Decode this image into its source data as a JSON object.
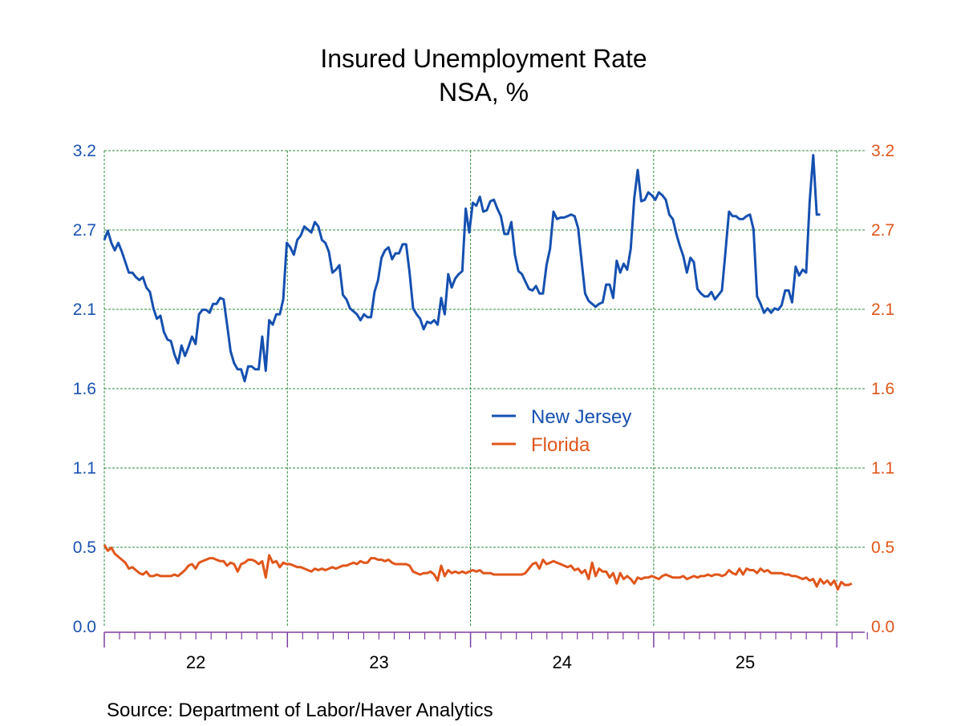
{
  "chart_data": {
    "type": "line",
    "title": "Insured Unemployment Rate",
    "subtitle": "NSA, %",
    "source": "Source:  Department of Labor/Haver Analytics",
    "xlabel": "",
    "ylabel": "",
    "frequency": "weekly",
    "x_tick_labels": [
      "22",
      "23",
      "24",
      "25"
    ],
    "x_range": [
      "2022-01",
      "2026-02"
    ],
    "y_left": {
      "range": [
        0.0,
        3.2
      ],
      "tick_values": [
        0.0,
        0.533,
        1.067,
        1.6,
        2.133,
        2.667,
        3.2
      ],
      "tick_labels": [
        "0.0",
        "0.5",
        "1.1",
        "1.6",
        "2.1",
        "2.7",
        "3.2"
      ],
      "color": "#1a52b0"
    },
    "y_right": {
      "range": [
        0.0,
        3.2
      ],
      "tick_values": [
        0.0,
        0.533,
        1.067,
        1.6,
        2.133,
        2.667,
        3.2
      ],
      "tick_labels": [
        "0.0",
        "0.5",
        "1.1",
        "1.6",
        "2.1",
        "2.7",
        "3.2"
      ],
      "color": "#e0561b"
    },
    "grid": true,
    "legend_position": "center",
    "series": [
      {
        "name": "New Jersey",
        "color": "#1550b0",
        "start_week": 0,
        "values": [
          2.6,
          2.66,
          2.58,
          2.53,
          2.58,
          2.52,
          2.45,
          2.38,
          2.38,
          2.35,
          2.33,
          2.35,
          2.28,
          2.25,
          2.14,
          2.07,
          2.09,
          1.98,
          1.93,
          1.92,
          1.83,
          1.77,
          1.89,
          1.82,
          1.88,
          1.95,
          1.9,
          2.1,
          2.13,
          2.13,
          2.11,
          2.17,
          2.17,
          2.21,
          2.2,
          2.03,
          1.85,
          1.77,
          1.73,
          1.73,
          1.65,
          1.75,
          1.75,
          1.73,
          1.73,
          1.95,
          1.72,
          2.06,
          2.03,
          2.1,
          2.1,
          2.2,
          2.58,
          2.55,
          2.5,
          2.6,
          2.63,
          2.69,
          2.67,
          2.65,
          2.72,
          2.69,
          2.6,
          2.58,
          2.52,
          2.38,
          2.4,
          2.43,
          2.23,
          2.2,
          2.14,
          2.12,
          2.1,
          2.06,
          2.1,
          2.08,
          2.08,
          2.25,
          2.33,
          2.48,
          2.53,
          2.55,
          2.47,
          2.51,
          2.51,
          2.57,
          2.57,
          2.38,
          2.14,
          2.1,
          2.07,
          2.0,
          2.05,
          2.04,
          2.06,
          2.03,
          2.21,
          2.1,
          2.37,
          2.28,
          2.34,
          2.37,
          2.39,
          2.81,
          2.65,
          2.85,
          2.83,
          2.89,
          2.79,
          2.8,
          2.86,
          2.87,
          2.81,
          2.76,
          2.64,
          2.64,
          2.72,
          2.5,
          2.39,
          2.37,
          2.32,
          2.27,
          2.26,
          2.29,
          2.24,
          2.24,
          2.43,
          2.54,
          2.79,
          2.74,
          2.75,
          2.75,
          2.76,
          2.77,
          2.76,
          2.68,
          2.46,
          2.24,
          2.19,
          2.17,
          2.15,
          2.17,
          2.18,
          2.3,
          2.3,
          2.21,
          2.46,
          2.38,
          2.44,
          2.4,
          2.54,
          2.88,
          3.07,
          2.86,
          2.87,
          2.92,
          2.9,
          2.87,
          2.92,
          2.9,
          2.87,
          2.77,
          2.74,
          2.64,
          2.56,
          2.49,
          2.38,
          2.48,
          2.45,
          2.27,
          2.24,
          2.22,
          2.22,
          2.25,
          2.2,
          2.23,
          2.26,
          2.52,
          2.79,
          2.76,
          2.76,
          2.74,
          2.74,
          2.76,
          2.77,
          2.67,
          2.22,
          2.17,
          2.11,
          2.14,
          2.11,
          2.14,
          2.13,
          2.16,
          2.26,
          2.26,
          2.18,
          2.42,
          2.36,
          2.4,
          2.38,
          2.86,
          3.17,
          2.77,
          2.77
        ]
      },
      {
        "name": "Florida",
        "color": "#e0561b",
        "start_week": 0,
        "values": [
          0.55,
          0.51,
          0.53,
          0.49,
          0.47,
          0.45,
          0.43,
          0.39,
          0.4,
          0.38,
          0.36,
          0.35,
          0.37,
          0.34,
          0.34,
          0.35,
          0.34,
          0.34,
          0.34,
          0.34,
          0.35,
          0.34,
          0.36,
          0.38,
          0.41,
          0.42,
          0.39,
          0.43,
          0.44,
          0.45,
          0.46,
          0.46,
          0.45,
          0.44,
          0.44,
          0.41,
          0.43,
          0.42,
          0.37,
          0.42,
          0.43,
          0.45,
          0.45,
          0.44,
          0.42,
          0.44,
          0.33,
          0.48,
          0.43,
          0.44,
          0.4,
          0.43,
          0.42,
          0.42,
          0.41,
          0.4,
          0.4,
          0.39,
          0.38,
          0.37,
          0.39,
          0.38,
          0.39,
          0.38,
          0.39,
          0.4,
          0.39,
          0.4,
          0.41,
          0.41,
          0.42,
          0.43,
          0.42,
          0.44,
          0.43,
          0.43,
          0.46,
          0.46,
          0.45,
          0.45,
          0.44,
          0.45,
          0.43,
          0.42,
          0.42,
          0.42,
          0.42,
          0.41,
          0.37,
          0.36,
          0.35,
          0.36,
          0.36,
          0.37,
          0.35,
          0.31,
          0.41,
          0.34,
          0.38,
          0.36,
          0.37,
          0.36,
          0.37,
          0.36,
          0.37,
          0.38,
          0.37,
          0.38,
          0.36,
          0.36,
          0.36,
          0.35,
          0.35,
          0.35,
          0.35,
          0.35,
          0.35,
          0.35,
          0.35,
          0.35,
          0.36,
          0.39,
          0.42,
          0.43,
          0.39,
          0.45,
          0.42,
          0.43,
          0.44,
          0.43,
          0.42,
          0.41,
          0.4,
          0.41,
          0.38,
          0.39,
          0.36,
          0.38,
          0.32,
          0.43,
          0.34,
          0.39,
          0.37,
          0.37,
          0.33,
          0.36,
          0.29,
          0.36,
          0.32,
          0.34,
          0.32,
          0.29,
          0.33,
          0.32,
          0.33,
          0.33,
          0.34,
          0.33,
          0.32,
          0.34,
          0.35,
          0.34,
          0.33,
          0.33,
          0.33,
          0.34,
          0.32,
          0.33,
          0.34,
          0.33,
          0.34,
          0.34,
          0.35,
          0.34,
          0.35,
          0.35,
          0.34,
          0.35,
          0.38,
          0.36,
          0.35,
          0.39,
          0.35,
          0.39,
          0.38,
          0.38,
          0.36,
          0.39,
          0.37,
          0.38,
          0.36,
          0.36,
          0.36,
          0.36,
          0.35,
          0.35,
          0.34,
          0.34,
          0.33,
          0.32,
          0.33,
          0.31,
          0.32,
          0.27,
          0.32,
          0.29,
          0.31,
          0.28,
          0.31,
          0.25,
          0.3,
          0.28,
          0.28,
          0.29
        ]
      }
    ]
  }
}
